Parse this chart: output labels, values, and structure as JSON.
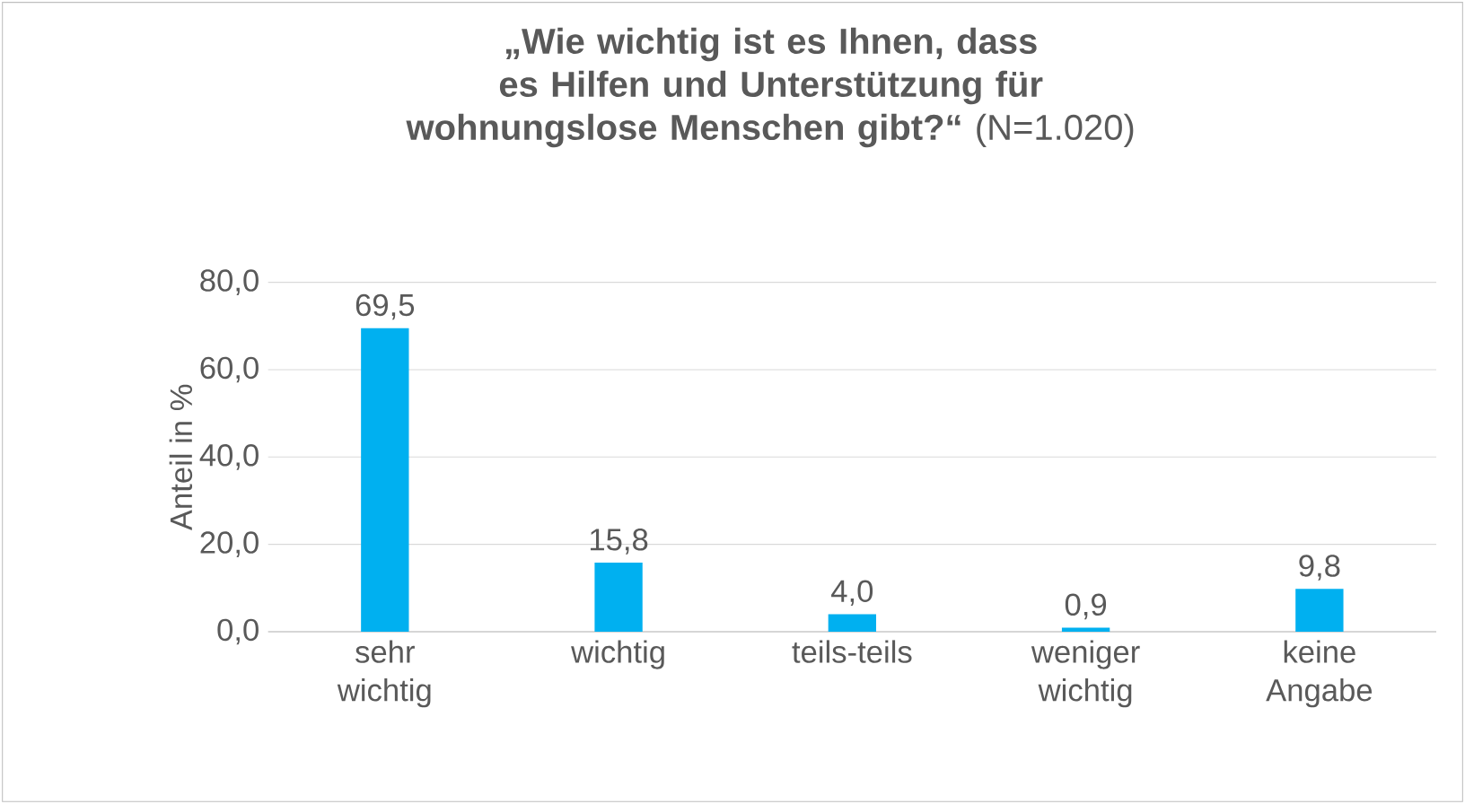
{
  "chart_data": {
    "type": "bar",
    "title": "**„Wie wichtig ist es Ihnen, dass es Hilfen und Unterstützung für wohnungslose Menschen gibt?“** (N=1.020)",
    "ylabel": "Anteil in %",
    "categories": [
      "sehr wichtig",
      "wichtig",
      "teils-teils",
      "weniger wichtig",
      "keine Angabe"
    ],
    "values": [
      69.5,
      15.8,
      4.0,
      0.9,
      9.8
    ],
    "value_labels": [
      "69,5",
      "15,8",
      "4,0",
      "0,9",
      "9,8"
    ],
    "color": "#00b0f0",
    "ylim": [
      0,
      80
    ],
    "yticks": [
      {
        "value": 0,
        "label": "0,0"
      },
      {
        "value": 20,
        "label": "20,0"
      },
      {
        "value": 40,
        "label": "40,0"
      },
      {
        "value": 60,
        "label": "60,0"
      },
      {
        "value": 80,
        "label": "80,0"
      }
    ],
    "grid": "y"
  }
}
